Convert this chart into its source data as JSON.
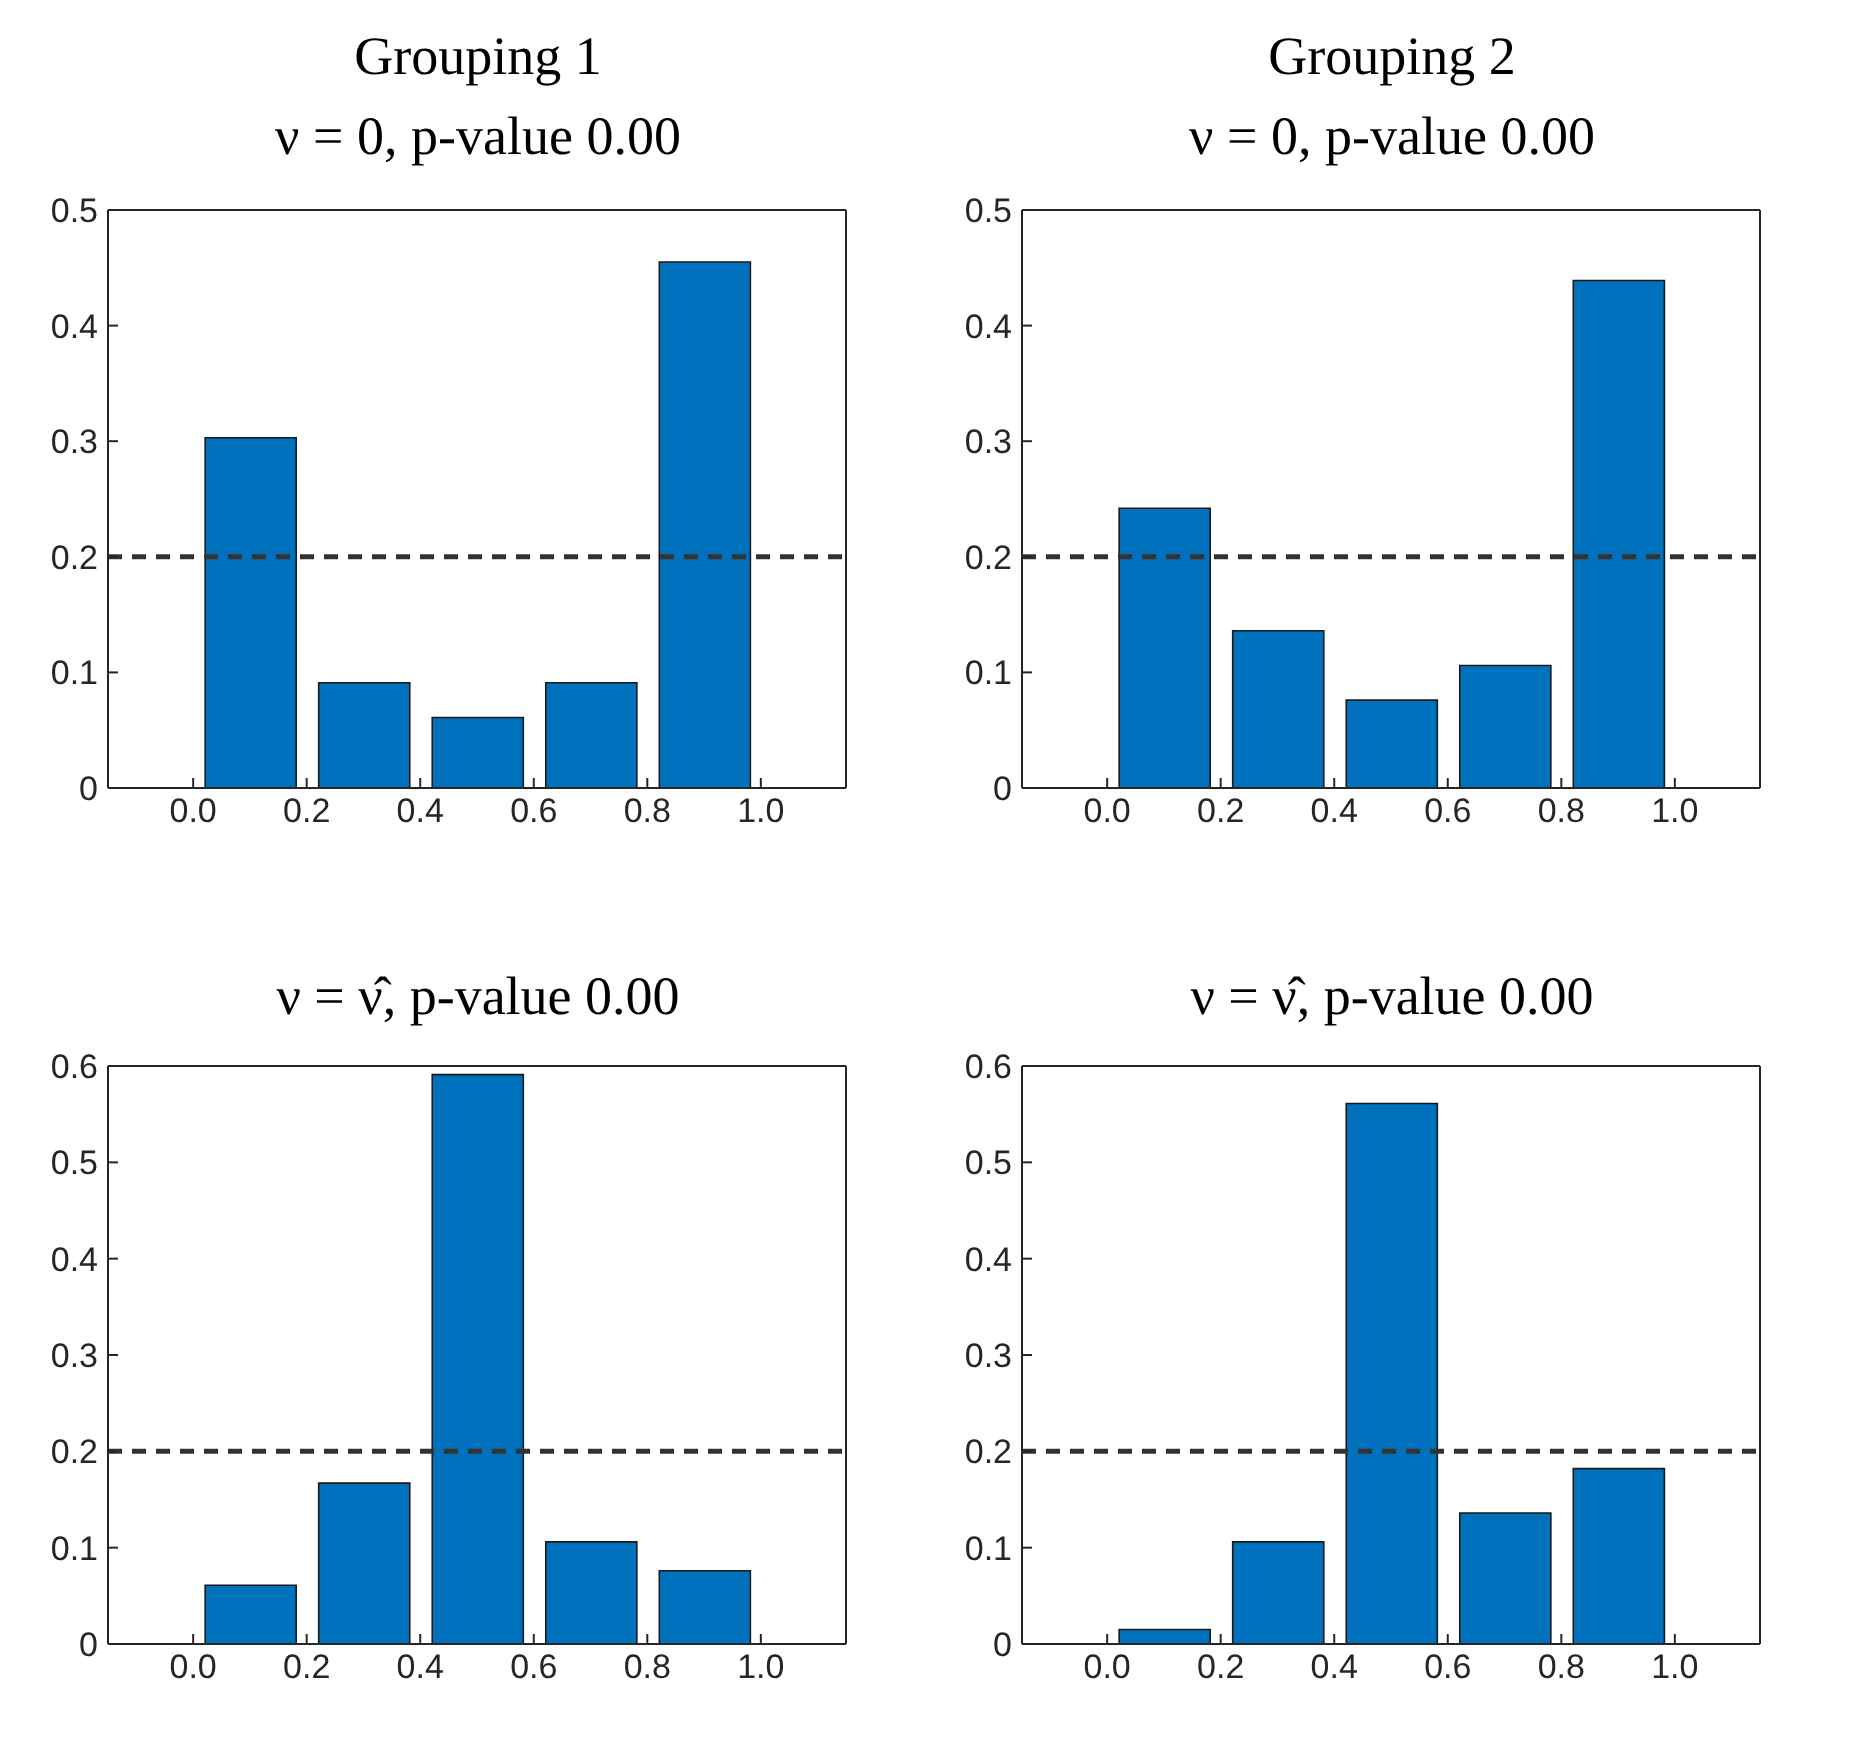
{
  "chart_data": [
    {
      "type": "histogram",
      "title": "Grouping 1",
      "subtitle": "ν = 0, p-value 0.00",
      "bins": [
        0,
        0.2,
        0.4,
        0.6,
        0.8,
        1
      ],
      "values": [
        0.303,
        0.091,
        0.061,
        0.091,
        0.455
      ],
      "color": "#0072bd",
      "xlim": [
        -0.15,
        1.15
      ],
      "xticks": [
        {
          "value": 0,
          "label": "0.0"
        },
        {
          "value": 0.2,
          "label": "0.2"
        },
        {
          "value": 0.4,
          "label": "0.4"
        },
        {
          "value": 0.6,
          "label": "0.6"
        },
        {
          "value": 0.8,
          "label": "0.8"
        },
        {
          "value": 1,
          "label": "1.0"
        }
      ],
      "ylim": [
        0,
        0.5
      ],
      "yticks": [
        0,
        0.1,
        0.2,
        0.3,
        0.4,
        0.5
      ],
      "ref_lines": [
        {
          "axis": "y",
          "value": 0.2,
          "color": "#333333",
          "line_style": "dashed"
        }
      ]
    },
    {
      "type": "histogram",
      "title": "Grouping 2",
      "subtitle": "ν = 0, p-value 0.00",
      "bins": [
        0,
        0.2,
        0.4,
        0.6,
        0.8,
        1
      ],
      "values": [
        0.242,
        0.136,
        0.076,
        0.106,
        0.439
      ],
      "color": "#0072bd",
      "xlim": [
        -0.15,
        1.15
      ],
      "xticks": [
        {
          "value": 0,
          "label": "0.0"
        },
        {
          "value": 0.2,
          "label": "0.2"
        },
        {
          "value": 0.4,
          "label": "0.4"
        },
        {
          "value": 0.6,
          "label": "0.6"
        },
        {
          "value": 0.8,
          "label": "0.8"
        },
        {
          "value": 1,
          "label": "1.0"
        }
      ],
      "ylim": [
        0,
        0.5
      ],
      "yticks": [
        0,
        0.1,
        0.2,
        0.3,
        0.4,
        0.5
      ],
      "ref_lines": [
        {
          "axis": "y",
          "value": 0.2,
          "color": "#333333",
          "line_style": "dashed"
        }
      ]
    },
    {
      "type": "histogram",
      "title": "ν = ν̂, p-value 0.00",
      "bins": [
        0,
        0.2,
        0.4,
        0.6,
        0.8,
        1
      ],
      "values": [
        0.061,
        0.167,
        0.591,
        0.106,
        0.076
      ],
      "color": "#0072bd",
      "xlim": [
        -0.15,
        1.15
      ],
      "xticks": [
        {
          "value": 0,
          "label": "0.0"
        },
        {
          "value": 0.2,
          "label": "0.2"
        },
        {
          "value": 0.4,
          "label": "0.4"
        },
        {
          "value": 0.6,
          "label": "0.6"
        },
        {
          "value": 0.8,
          "label": "0.8"
        },
        {
          "value": 1,
          "label": "1.0"
        }
      ],
      "ylim": [
        0,
        0.6
      ],
      "yticks": [
        0,
        0.1,
        0.2,
        0.3,
        0.4,
        0.5,
        0.6
      ],
      "ref_lines": [
        {
          "axis": "y",
          "value": 0.2,
          "color": "#333333",
          "line_style": "dashed"
        }
      ]
    },
    {
      "type": "histogram",
      "title": "ν = ν̂, p-value 0.00",
      "bins": [
        0,
        0.2,
        0.4,
        0.6,
        0.8,
        1
      ],
      "values": [
        0.015,
        0.106,
        0.561,
        0.136,
        0.182
      ],
      "color": "#0072bd",
      "xlim": [
        -0.15,
        1.15
      ],
      "xticks": [
        {
          "value": 0,
          "label": "0.0"
        },
        {
          "value": 0.2,
          "label": "0.2"
        },
        {
          "value": 0.4,
          "label": "0.4"
        },
        {
          "value": 0.6,
          "label": "0.6"
        },
        {
          "value": 0.8,
          "label": "0.8"
        },
        {
          "value": 1,
          "label": "1.0"
        }
      ],
      "ylim": [
        0,
        0.6
      ],
      "yticks": [
        0,
        0.1,
        0.2,
        0.3,
        0.4,
        0.5,
        0.6
      ],
      "ref_lines": [
        {
          "axis": "y",
          "value": 0.2,
          "color": "#333333",
          "line_style": "dashed"
        }
      ]
    }
  ]
}
